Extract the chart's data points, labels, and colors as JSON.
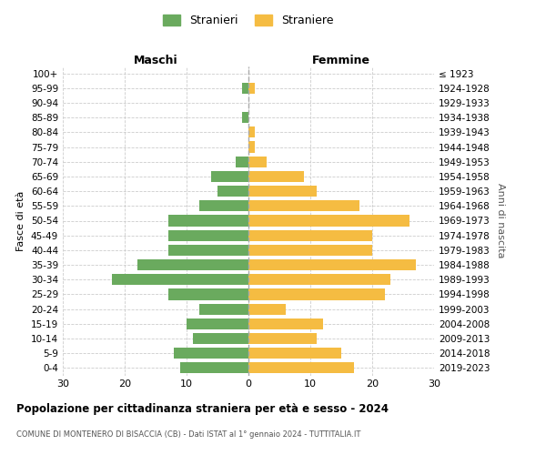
{
  "age_groups": [
    "100+",
    "95-99",
    "90-94",
    "85-89",
    "80-84",
    "75-79",
    "70-74",
    "65-69",
    "60-64",
    "55-59",
    "50-54",
    "45-49",
    "40-44",
    "35-39",
    "30-34",
    "25-29",
    "20-24",
    "15-19",
    "10-14",
    "5-9",
    "0-4"
  ],
  "birth_years": [
    "≤ 1923",
    "1924-1928",
    "1929-1933",
    "1934-1938",
    "1939-1943",
    "1944-1948",
    "1949-1953",
    "1954-1958",
    "1959-1963",
    "1964-1968",
    "1969-1973",
    "1974-1978",
    "1979-1983",
    "1984-1988",
    "1989-1993",
    "1994-1998",
    "1999-2003",
    "2004-2008",
    "2009-2013",
    "2014-2018",
    "2019-2023"
  ],
  "maschi": [
    0,
    1,
    0,
    1,
    0,
    0,
    2,
    6,
    5,
    8,
    13,
    13,
    13,
    18,
    22,
    13,
    8,
    10,
    9,
    12,
    11
  ],
  "femmine": [
    0,
    1,
    0,
    0,
    1,
    1,
    3,
    9,
    11,
    18,
    26,
    20,
    20,
    27,
    23,
    22,
    6,
    12,
    11,
    15,
    17
  ],
  "male_color": "#6aaa5e",
  "female_color": "#f5bc42",
  "background_color": "#ffffff",
  "grid_color": "#cccccc",
  "title": "Popolazione per cittadinanza straniera per età e sesso - 2024",
  "subtitle": "COMUNE DI MONTENERO DI BISACCIA (CB) - Dati ISTAT al 1° gennaio 2024 - TUTTITALIA.IT",
  "left_label": "Maschi",
  "right_label": "Femmine",
  "ylabel": "Fasce di età",
  "right_ylabel": "Anni di nascita",
  "legend_male": "Stranieri",
  "legend_female": "Straniere",
  "xlim": 30,
  "bar_height": 0.75
}
